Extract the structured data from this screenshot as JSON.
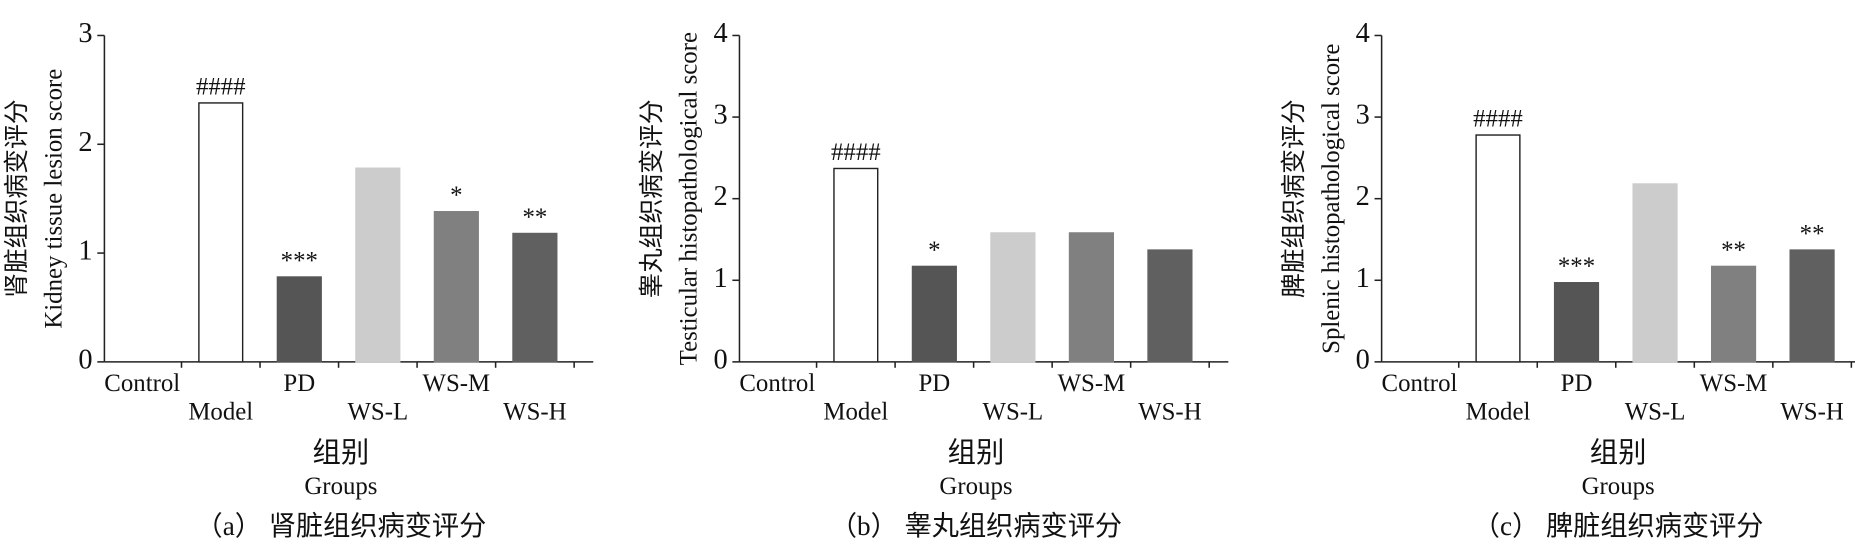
{
  "chart_data": [
    {
      "type": "bar",
      "title": "（a） 肾脏组织病变评分",
      "ylabel": [
        "肾脏组织病变评分",
        "Kidney tissue lesion score"
      ],
      "xlabel": [
        "组别",
        "Groups"
      ],
      "categories": [
        "Control",
        "Model",
        "PD",
        "WS-L",
        "WS-M",
        "WS-H"
      ],
      "values": [
        0,
        2.38,
        0.78,
        1.78,
        1.38,
        1.18
      ],
      "annotations": [
        null,
        "####",
        "***",
        null,
        "*",
        "**"
      ],
      "colors": [
        "#ffffff",
        "#ffffff",
        "#555555",
        "#cccccc",
        "#808080",
        "#606060"
      ],
      "ylim": [
        0,
        3
      ],
      "yticks": [
        0,
        1,
        2,
        3
      ]
    },
    {
      "type": "bar",
      "title": "（b） 睾丸组织病变评分",
      "ylabel": [
        "睾丸组织病变评分",
        "Testicular histopathological score"
      ],
      "xlabel": [
        "组别",
        "Groups"
      ],
      "categories": [
        "Control",
        "Model",
        "PD",
        "WS-L",
        "WS-M",
        "WS-H"
      ],
      "values": [
        0,
        2.37,
        1.17,
        1.58,
        1.58,
        1.37
      ],
      "annotations": [
        null,
        "####",
        "*",
        null,
        null,
        null
      ],
      "colors": [
        "#ffffff",
        "#ffffff",
        "#555555",
        "#cccccc",
        "#808080",
        "#606060"
      ],
      "ylim": [
        0,
        4
      ],
      "yticks": [
        0,
        1,
        2,
        3,
        4
      ]
    },
    {
      "type": "bar",
      "title": "（c） 脾脏组织病变评分",
      "ylabel": [
        "脾脏组织病变评分",
        "Splenic histopathological score"
      ],
      "xlabel": [
        "组别",
        "Groups"
      ],
      "categories": [
        "Control",
        "Model",
        "PD",
        "WS-L",
        "WS-M",
        "WS-H"
      ],
      "values": [
        0,
        2.78,
        0.97,
        2.18,
        1.17,
        1.37
      ],
      "annotations": [
        null,
        "####",
        "***",
        null,
        "**",
        "**"
      ],
      "colors": [
        "#ffffff",
        "#ffffff",
        "#555555",
        "#cccccc",
        "#808080",
        "#606060"
      ],
      "ylim": [
        0,
        4
      ],
      "yticks": [
        0,
        1,
        2,
        3,
        4
      ]
    }
  ]
}
